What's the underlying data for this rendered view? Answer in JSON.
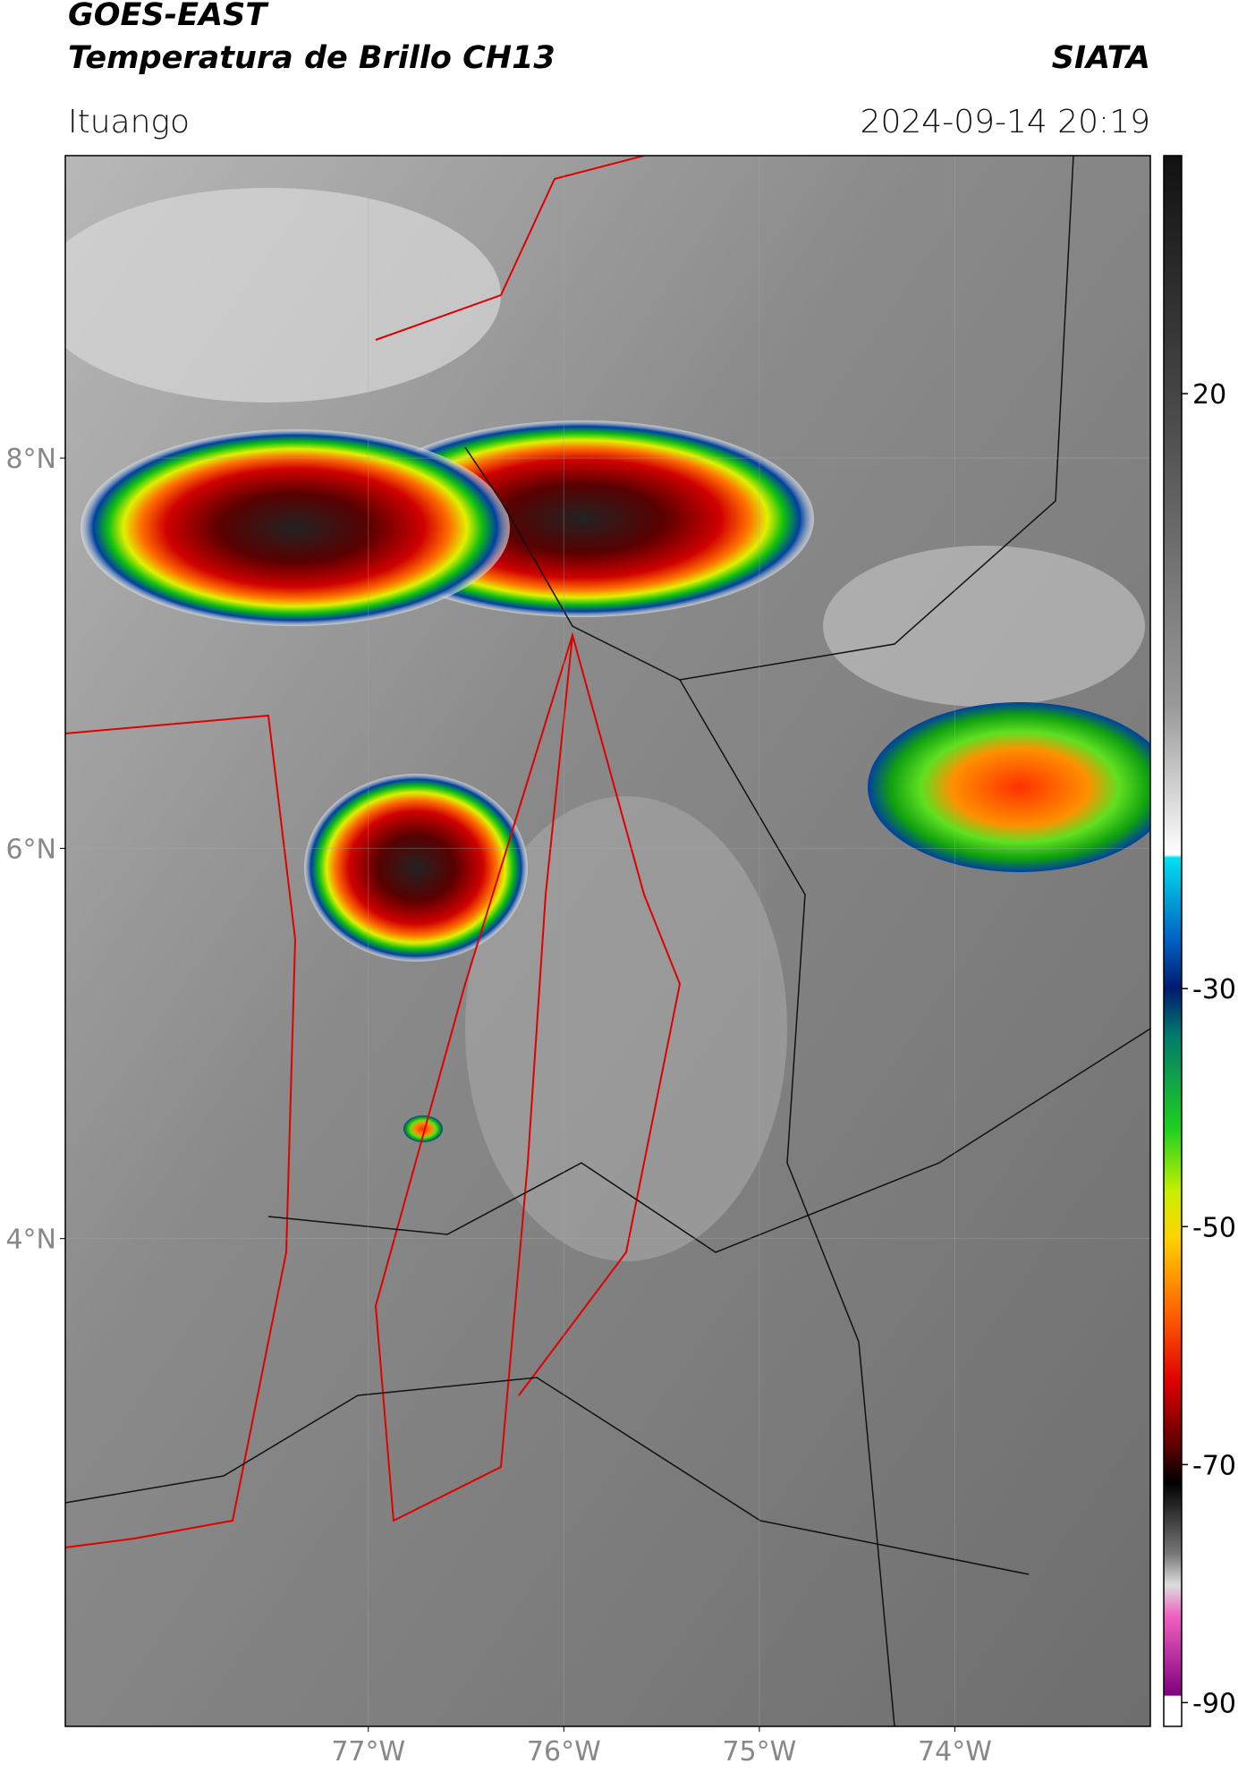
{
  "header": {
    "title_line1": "GOES-EAST",
    "title_line2": "Temperatura de Brillo CH13",
    "org": "SIATA",
    "location": "Ituango",
    "datetime": "2024-09-14 20:19"
  },
  "map": {
    "xlim": [
      -78.55,
      -73.0
    ],
    "ylim": [
      1.5,
      9.55
    ],
    "xticks": [
      {
        "value": -77,
        "label": "77°W"
      },
      {
        "value": -76,
        "label": "76°W"
      },
      {
        "value": -75,
        "label": "75°W"
      },
      {
        "value": -74,
        "label": "74°W"
      }
    ],
    "yticks": [
      {
        "value": 8,
        "label": "8°N"
      },
      {
        "value": 6,
        "label": "6°N"
      },
      {
        "value": 4,
        "label": "4°N"
      }
    ]
  },
  "colorbar": {
    "lim": [
      -92,
      40
    ],
    "ticks": [
      20,
      -30,
      -50,
      -70,
      -90
    ]
  }
}
